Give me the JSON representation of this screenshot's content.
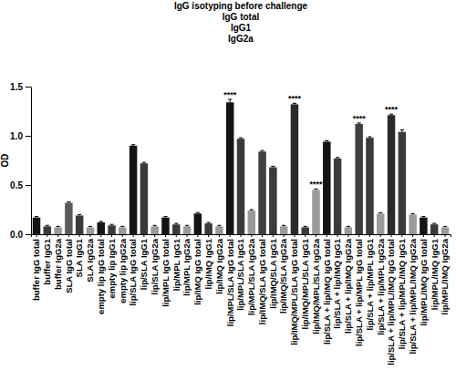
{
  "chart_data": {
    "type": "bar",
    "title": "IgG isotyping before challenge",
    "subtitle": [
      "IgG total",
      "IgG1",
      "IgG2a"
    ],
    "y_label": "OD",
    "categories": [
      "buffer IgG total",
      "buffer IgG1",
      "buffer IgG2a",
      "SLA IgG total",
      "SLA IgG1",
      "SLA IgG2a",
      "empty lip IgG total",
      "empty lip IgG1",
      "empty lip IgG2a",
      "lip/SLA IgG total",
      "lip/SLA IgG1",
      "lip/SLA IgG2a",
      "lip/MPL IgG total",
      "lip/MPL IgG1",
      "lip/MPL IgG2a",
      "lip/IMQ IgG total",
      "lip/IMQ IgG1",
      "lip/IMQ IgG2a",
      "lip/MPL/SLA IgG total",
      "lip/MPL/SLA IgG1",
      "lip/MPL/SLA IgG2a",
      "lip/IMQ/SLA IgG total",
      "lip/IMQ/SLA IgG1",
      "lip/IMQ/SLA IgG2a",
      "lip/IMQ/MPL/SLA IgG total",
      "lip/IMQ/MPL/SLA IgG1",
      "lip/IMQ/MPL/SLA IgG2a",
      "lip/SLA + lip/IMQ IgG total",
      "lip/SLA + lip/IMQ IgG1",
      "lip/SLA + lip/IMQ IgG2a",
      "lip/SLA + lip/MPL IgG total",
      "lip/SLA + lip/MPL IgG1",
      "lip/SLA + lip/MPL IgG2a",
      "lip/SLA + lip/MPL/IMQ IgG total",
      "lip/SLA + lip/MPL/IMQ IgG1",
      "lip/SLA + lip/MPL/IMQ IgG2a",
      "lip/MPL/IMQ IgG total",
      "lip/MPL/IMQ IgG1",
      "lip/MPL/IMQ IgG2a"
    ],
    "values": [
      0.17,
      0.08,
      0.07,
      0.32,
      0.19,
      0.07,
      0.12,
      0.09,
      0.07,
      0.9,
      0.72,
      0.08,
      0.17,
      0.1,
      0.08,
      0.21,
      0.11,
      0.08,
      1.34,
      0.97,
      0.24,
      0.84,
      0.68,
      0.08,
      1.32,
      0.07,
      0.45,
      0.94,
      0.77,
      0.07,
      1.12,
      0.98,
      0.21,
      1.21,
      1.04,
      0.2,
      0.17,
      0.1,
      0.07
    ],
    "errors": [
      0.01,
      0.01,
      0.01,
      0.01,
      0.01,
      0.01,
      0.01,
      0.01,
      0.01,
      0.01,
      0.01,
      0.01,
      0.01,
      0.01,
      0.01,
      0.01,
      0.01,
      0.01,
      0.03,
      0.01,
      0.01,
      0.01,
      0.01,
      0.01,
      0.01,
      0.01,
      0.01,
      0.01,
      0.01,
      0.01,
      0.01,
      0.01,
      0.01,
      0.01,
      0.02,
      0.01,
      0.01,
      0.01,
      0.01
    ],
    "colors": [
      "#141414",
      "#3a3a3a",
      "#9a9a9a",
      "#5a5a5a",
      "#3a3a3a",
      "#9a9a9a",
      "#141414",
      "#3a3a3a",
      "#9a9a9a",
      "#141414",
      "#3a3a3a",
      "#9a9a9a",
      "#141414",
      "#3a3a3a",
      "#9a9a9a",
      "#141414",
      "#3a3a3a",
      "#9a9a9a",
      "#141414",
      "#3a3a3a",
      "#9a9a9a",
      "#3f3f3f",
      "#3a3a3a",
      "#9a9a9a",
      "#2a2a2a",
      "#3a3a3a",
      "#9a9a9a",
      "#141414",
      "#3a3a3a",
      "#9a9a9a",
      "#3f3f3f",
      "#3a3a3a",
      "#9a9a9a",
      "#2a2a2a",
      "#3a3a3a",
      "#9a9a9a",
      "#141414",
      "#3a3a3a",
      "#9a9a9a"
    ],
    "ylim": [
      0,
      1.5
    ],
    "yticks": [
      {
        "value": 0,
        "label": "0.0"
      },
      {
        "value": 0.5,
        "label": "0.5"
      },
      {
        "value": 1,
        "label": "1.0"
      },
      {
        "value": 1.5,
        "label": "1.5"
      }
    ],
    "grid": false,
    "annotations": [
      {
        "text": "****",
        "category": "lip/MPL/SLA IgG total"
      },
      {
        "text": "****",
        "category": "lip/IMQ/MPL/SLA IgG total"
      },
      {
        "text": "****",
        "category": "lip/IMQ/MPL/SLA IgG2a"
      },
      {
        "text": "****",
        "category": "lip/SLA + lip/MPL IgG total"
      },
      {
        "text": "****",
        "category": "lip/SLA + lip/MPL/IMQ IgG total"
      }
    ]
  }
}
